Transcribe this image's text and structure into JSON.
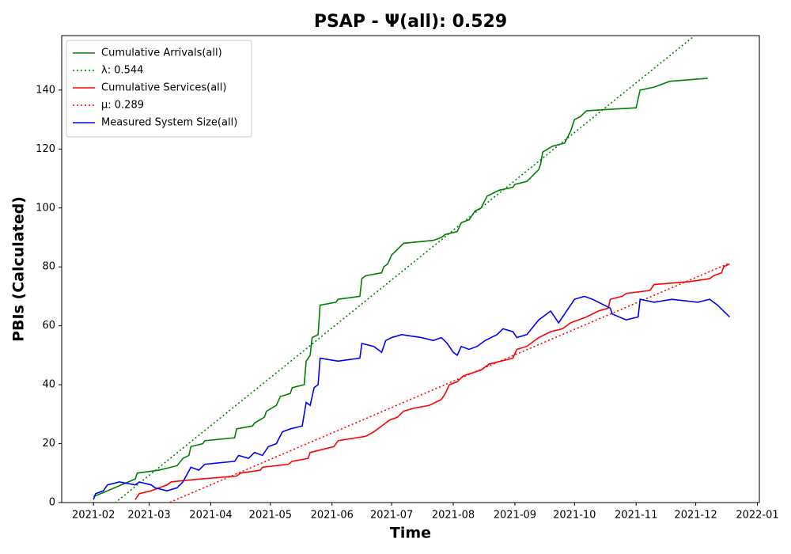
{
  "chart_data": {
    "type": "line",
    "title": "PSAP -  Ψ(all): 0.529",
    "x_label": "Time",
    "y_label": "PBIs (Calculated)",
    "xlim": [
      "2021-01-16",
      "2022-01-02"
    ],
    "xticks": [
      {
        "value": "2021-02-01",
        "label": "2021-02"
      },
      {
        "value": "2021-03-01",
        "label": "2021-03"
      },
      {
        "value": "2021-04-01",
        "label": "2021-04"
      },
      {
        "value": "2021-05-01",
        "label": "2021-05"
      },
      {
        "value": "2021-06-01",
        "label": "2021-06"
      },
      {
        "value": "2021-07-01",
        "label": "2021-07"
      },
      {
        "value": "2021-08-01",
        "label": "2021-08"
      },
      {
        "value": "2021-09-01",
        "label": "2021-09"
      },
      {
        "value": "2021-10-01",
        "label": "2021-10"
      },
      {
        "value": "2021-11-01",
        "label": "2021-11"
      },
      {
        "value": "2021-12-01",
        "label": "2021-12"
      },
      {
        "value": "2022-01-01",
        "label": "2022-01"
      }
    ],
    "ylim": [
      0,
      158.5
    ],
    "yticks": [
      0,
      20,
      40,
      60,
      80,
      100,
      120,
      140
    ],
    "legend": "upper left",
    "series": [
      {
        "name": "Cumulative Arrivals(all)",
        "color": "#008000",
        "style": "solid",
        "x": [
          "2021-02-01",
          "2021-02-22",
          "2021-02-23",
          "2021-03-06",
          "2021-03-15",
          "2021-03-18",
          "2021-03-21",
          "2021-03-22",
          "2021-03-28",
          "2021-03-29",
          "2021-04-13",
          "2021-04-14",
          "2021-04-22",
          "2021-04-23",
          "2021-04-28",
          "2021-04-29",
          "2021-05-04",
          "2021-05-06",
          "2021-05-11",
          "2021-05-12",
          "2021-05-18",
          "2021-05-19",
          "2021-05-21",
          "2021-05-22",
          "2021-05-25",
          "2021-05-26",
          "2021-06-03",
          "2021-06-04",
          "2021-06-15",
          "2021-06-16",
          "2021-06-18",
          "2021-06-26",
          "2021-06-27",
          "2021-06-29",
          "2021-07-01",
          "2021-07-04",
          "2021-07-07",
          "2021-07-22",
          "2021-07-26",
          "2021-07-28",
          "2021-08-03",
          "2021-08-05",
          "2021-08-09",
          "2021-08-12",
          "2021-08-15",
          "2021-08-18",
          "2021-08-24",
          "2021-08-31",
          "2021-09-01",
          "2021-09-07",
          "2021-09-13",
          "2021-09-14",
          "2021-09-15",
          "2021-09-20",
          "2021-09-26",
          "2021-09-29",
          "2021-10-01",
          "2021-10-04",
          "2021-10-07",
          "2021-11-01",
          "2021-11-03",
          "2021-11-10",
          "2021-11-18",
          "2021-12-07"
        ],
        "values": [
          2,
          8,
          10,
          11,
          12.5,
          15,
          16,
          19,
          20,
          21,
          22,
          25,
          26,
          27,
          29,
          31,
          33,
          36,
          37,
          39,
          40,
          48,
          50,
          56,
          57,
          67,
          68,
          69,
          70,
          76,
          77,
          78,
          80,
          81,
          84,
          86,
          88,
          89,
          90,
          91,
          92,
          95,
          96,
          99,
          100,
          104,
          106,
          107,
          108,
          109,
          113,
          115,
          119,
          121,
          122,
          126,
          130,
          131,
          133,
          134,
          140,
          141,
          143,
          144
        ]
      },
      {
        "name": "λ: 0.544",
        "color": "#008000",
        "style": "dotted",
        "x": [
          "2021-02-01",
          "2021-12-17"
        ],
        "values": [
          -6,
          167.5
        ]
      },
      {
        "name": "Cumulative Services(all)",
        "color": "#ff0000",
        "style": "solid",
        "x": [
          "2021-02-22",
          "2021-02-24",
          "2021-03-02",
          "2021-03-06",
          "2021-03-10",
          "2021-03-12",
          "2021-03-19",
          "2021-03-27",
          "2021-04-14",
          "2021-04-16",
          "2021-04-26",
          "2021-04-27",
          "2021-05-10",
          "2021-05-12",
          "2021-05-20",
          "2021-05-21",
          "2021-06-02",
          "2021-06-04",
          "2021-06-18",
          "2021-06-22",
          "2021-06-26",
          "2021-06-30",
          "2021-07-04",
          "2021-07-07",
          "2021-07-12",
          "2021-07-20",
          "2021-07-26",
          "2021-07-28",
          "2021-07-30",
          "2021-08-03",
          "2021-08-06",
          "2021-08-15",
          "2021-08-19",
          "2021-08-25",
          "2021-08-31",
          "2021-09-02",
          "2021-09-07",
          "2021-09-13",
          "2021-09-19",
          "2021-09-25",
          "2021-09-29",
          "2021-10-07",
          "2021-10-13",
          "2021-10-18",
          "2021-10-19",
          "2021-10-25",
          "2021-10-27",
          "2021-11-08",
          "2021-11-10",
          "2021-11-28",
          "2021-12-08",
          "2021-12-10",
          "2021-12-14",
          "2021-12-15",
          "2021-12-18"
        ],
        "values": [
          1,
          3,
          4,
          5,
          6,
          7,
          7.5,
          8,
          9,
          10,
          11,
          12,
          13,
          14,
          15,
          17,
          19,
          21,
          22.5,
          24,
          26,
          28,
          29,
          31,
          32,
          33,
          35,
          37,
          40,
          41,
          43,
          45,
          47,
          48,
          49,
          52,
          53,
          56,
          58,
          59,
          61,
          63,
          65,
          66,
          69,
          70,
          71,
          72,
          74,
          75,
          76,
          77,
          78,
          80,
          81
        ]
      },
      {
        "name": "μ: 0.289",
        "color": "#ff0000",
        "style": "dotted",
        "x": [
          "2021-02-01",
          "2021-12-17"
        ],
        "values": [
          -11,
          81
        ]
      },
      {
        "name": "Measured System Size(all)",
        "color": "#0000ff",
        "style": "solid",
        "x": [
          "2021-02-01",
          "2021-02-02",
          "2021-02-06",
          "2021-02-08",
          "2021-02-14",
          "2021-02-22",
          "2021-02-24",
          "2021-03-02",
          "2021-03-04",
          "2021-03-10",
          "2021-03-15",
          "2021-03-18",
          "2021-03-22",
          "2021-03-26",
          "2021-03-29",
          "2021-04-13",
          "2021-04-15",
          "2021-04-20",
          "2021-04-23",
          "2021-04-27",
          "2021-04-30",
          "2021-05-04",
          "2021-05-07",
          "2021-05-11",
          "2021-05-17",
          "2021-05-19",
          "2021-05-21",
          "2021-05-23",
          "2021-05-25",
          "2021-05-26",
          "2021-06-04",
          "2021-06-15",
          "2021-06-16",
          "2021-06-22",
          "2021-06-26",
          "2021-06-28",
          "2021-07-01",
          "2021-07-06",
          "2021-07-16",
          "2021-07-22",
          "2021-07-26",
          "2021-07-29",
          "2021-08-01",
          "2021-08-03",
          "2021-08-05",
          "2021-08-09",
          "2021-08-13",
          "2021-08-17",
          "2021-08-23",
          "2021-08-26",
          "2021-08-31",
          "2021-09-02",
          "2021-09-07",
          "2021-09-13",
          "2021-09-19",
          "2021-09-23",
          "2021-10-01",
          "2021-10-06",
          "2021-10-10",
          "2021-10-19",
          "2021-10-20",
          "2021-10-27",
          "2021-11-02",
          "2021-11-03",
          "2021-11-10",
          "2021-11-19",
          "2021-12-02",
          "2021-12-08",
          "2021-12-12",
          "2021-12-15",
          "2021-12-18"
        ],
        "values": [
          1,
          3,
          4,
          6,
          7,
          6,
          7,
          6,
          5,
          4,
          5,
          7,
          12,
          11,
          13,
          14,
          16,
          15,
          17,
          16,
          19,
          20,
          24,
          25,
          26,
          34,
          33,
          39,
          40,
          49,
          48,
          49,
          54,
          53,
          51,
          55,
          56,
          57,
          56,
          55,
          56,
          54,
          51,
          50,
          53,
          52,
          53,
          55,
          57,
          59,
          58,
          56,
          57,
          62,
          65,
          61,
          69,
          70,
          69,
          66,
          64,
          62,
          63,
          69,
          68,
          69,
          68,
          69,
          67,
          65,
          63
        ]
      }
    ]
  }
}
